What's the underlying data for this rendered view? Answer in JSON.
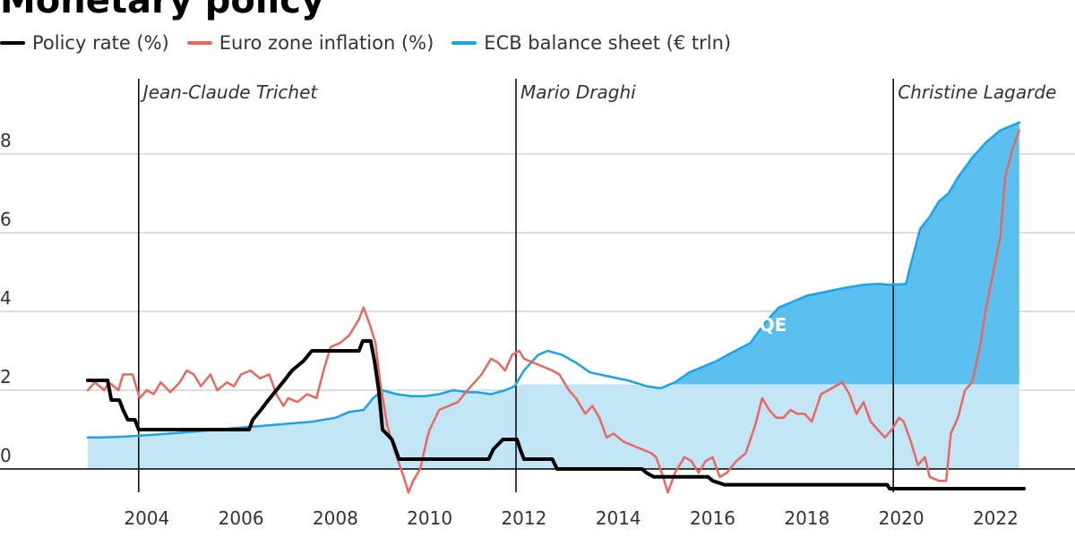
{
  "page": {
    "title": "Monetary policy"
  },
  "legend": [
    {
      "label": "Policy rate (%)",
      "color": "#000000"
    },
    {
      "label": "Euro zone inflation (%)",
      "color": "#e8685f"
    },
    {
      "label": "ECB balance sheet (€ trln)",
      "color": "#1aa3e8"
    }
  ],
  "colors": {
    "policy": "#000000",
    "inflation": "#e8685f",
    "balance_line": "#1aa3e8",
    "balance_fill_light": "#c3e6f7",
    "balance_fill_qe": "#5bc0f0",
    "grid": "#bdbdbd"
  },
  "chart_data": {
    "type": "line",
    "x_unit": "year",
    "xlim": [
      2001.0,
      2023.8
    ],
    "ylim": [
      -1.0,
      9.9
    ],
    "x_ticks": [
      2004,
      2006,
      2008,
      2010,
      2012,
      2014,
      2016,
      2018,
      2020,
      2022
    ],
    "x_tick_labels": [
      "2004",
      "2006",
      "2008",
      "2010",
      "2012",
      "2014",
      "2016",
      "2018",
      "2020",
      "2022"
    ],
    "y_ticks": [
      0,
      2,
      4,
      6,
      8
    ],
    "y_tick_labels": [
      "0",
      "2",
      "4",
      "6",
      "8"
    ],
    "grid": true,
    "legend_position": "top-left",
    "eras": [
      {
        "start": 2003.83,
        "label": "Jean-Claude Trichet"
      },
      {
        "start": 2011.83,
        "label": "Mario Draghi"
      },
      {
        "start": 2019.83,
        "label": "Christine Lagarde"
      }
    ],
    "annotations": [
      {
        "text": "ECB QE",
        "x": 2016.8,
        "y": 3.5
      }
    ],
    "qe_threshold": 2.15,
    "series": [
      {
        "name": "Policy rate (%)",
        "points": [
          [
            2002.75,
            2.25
          ],
          [
            2003.17,
            2.25
          ],
          [
            2003.25,
            1.75
          ],
          [
            2003.42,
            1.75
          ],
          [
            2003.5,
            1.5
          ],
          [
            2003.6,
            1.25
          ],
          [
            2003.75,
            1.25
          ],
          [
            2003.83,
            1.0
          ],
          [
            2005.92,
            1.0
          ],
          [
            2006.17,
            1.0
          ],
          [
            2006.25,
            1.25
          ],
          [
            2006.42,
            1.5
          ],
          [
            2006.58,
            1.75
          ],
          [
            2006.75,
            2.0
          ],
          [
            2006.92,
            2.25
          ],
          [
            2007.08,
            2.5
          ],
          [
            2007.33,
            2.75
          ],
          [
            2007.5,
            3.0
          ],
          [
            2008.5,
            3.0
          ],
          [
            2008.58,
            3.25
          ],
          [
            2008.75,
            3.25
          ],
          [
            2008.83,
            2.75
          ],
          [
            2008.92,
            2.0
          ],
          [
            2009.0,
            1.0
          ],
          [
            2009.2,
            0.75
          ],
          [
            2009.35,
            0.25
          ],
          [
            2011.25,
            0.25
          ],
          [
            2011.35,
            0.5
          ],
          [
            2011.55,
            0.75
          ],
          [
            2011.85,
            0.75
          ],
          [
            2011.92,
            0.5
          ],
          [
            2012.0,
            0.25
          ],
          [
            2012.6,
            0.25
          ],
          [
            2012.7,
            0.0
          ],
          [
            2014.5,
            0.0
          ],
          [
            2014.6,
            -0.1
          ],
          [
            2014.75,
            -0.2
          ],
          [
            2015.9,
            -0.2
          ],
          [
            2016.0,
            -0.3
          ],
          [
            2016.25,
            -0.4
          ],
          [
            2019.7,
            -0.4
          ],
          [
            2019.75,
            -0.5
          ],
          [
            2022.6,
            -0.5
          ]
        ]
      },
      {
        "name": "Euro zone inflation (%)",
        "points": [
          [
            2002.75,
            2.0
          ],
          [
            2002.9,
            2.2
          ],
          [
            2003.1,
            2.0
          ],
          [
            2003.2,
            2.2
          ],
          [
            2003.4,
            2.0
          ],
          [
            2003.5,
            2.4
          ],
          [
            2003.7,
            2.4
          ],
          [
            2003.85,
            1.8
          ],
          [
            2004.0,
            2.0
          ],
          [
            2004.15,
            1.9
          ],
          [
            2004.3,
            2.2
          ],
          [
            2004.5,
            1.95
          ],
          [
            2004.7,
            2.2
          ],
          [
            2004.85,
            2.5
          ],
          [
            2005.0,
            2.4
          ],
          [
            2005.15,
            2.1
          ],
          [
            2005.35,
            2.4
          ],
          [
            2005.5,
            2.0
          ],
          [
            2005.7,
            2.2
          ],
          [
            2005.85,
            2.1
          ],
          [
            2006.0,
            2.4
          ],
          [
            2006.2,
            2.5
          ],
          [
            2006.4,
            2.3
          ],
          [
            2006.6,
            2.4
          ],
          [
            2006.75,
            1.9
          ],
          [
            2006.9,
            1.6
          ],
          [
            2007.0,
            1.8
          ],
          [
            2007.2,
            1.7
          ],
          [
            2007.4,
            1.9
          ],
          [
            2007.6,
            1.8
          ],
          [
            2007.75,
            2.5
          ],
          [
            2007.9,
            3.1
          ],
          [
            2008.1,
            3.2
          ],
          [
            2008.3,
            3.4
          ],
          [
            2008.5,
            3.8
          ],
          [
            2008.6,
            4.1
          ],
          [
            2008.75,
            3.6
          ],
          [
            2008.85,
            3.2
          ],
          [
            2008.95,
            2.2
          ],
          [
            2009.1,
            1.1
          ],
          [
            2009.3,
            0.3
          ],
          [
            2009.45,
            -0.2
          ],
          [
            2009.55,
            -0.6
          ],
          [
            2009.65,
            -0.3
          ],
          [
            2009.8,
            0.0
          ],
          [
            2009.95,
            0.8
          ],
          [
            2010.0,
            1.0
          ],
          [
            2010.2,
            1.5
          ],
          [
            2010.4,
            1.6
          ],
          [
            2010.6,
            1.7
          ],
          [
            2010.8,
            2.0
          ],
          [
            2010.95,
            2.2
          ],
          [
            2011.1,
            2.4
          ],
          [
            2011.3,
            2.8
          ],
          [
            2011.45,
            2.7
          ],
          [
            2011.6,
            2.5
          ],
          [
            2011.75,
            2.9
          ],
          [
            2011.9,
            3.0
          ],
          [
            2012.0,
            2.8
          ],
          [
            2012.2,
            2.7
          ],
          [
            2012.4,
            2.6
          ],
          [
            2012.6,
            2.5
          ],
          [
            2012.75,
            2.4
          ],
          [
            2012.85,
            2.2
          ],
          [
            2012.95,
            2.0
          ],
          [
            2013.1,
            1.8
          ],
          [
            2013.3,
            1.4
          ],
          [
            2013.45,
            1.6
          ],
          [
            2013.6,
            1.3
          ],
          [
            2013.75,
            0.8
          ],
          [
            2013.9,
            0.9
          ],
          [
            2014.1,
            0.7
          ],
          [
            2014.3,
            0.6
          ],
          [
            2014.5,
            0.5
          ],
          [
            2014.7,
            0.4
          ],
          [
            2014.8,
            0.3
          ],
          [
            2014.95,
            -0.2
          ],
          [
            2015.05,
            -0.6
          ],
          [
            2015.2,
            -0.1
          ],
          [
            2015.4,
            0.3
          ],
          [
            2015.55,
            0.2
          ],
          [
            2015.7,
            -0.1
          ],
          [
            2015.85,
            0.2
          ],
          [
            2016.0,
            0.3
          ],
          [
            2016.15,
            -0.2
          ],
          [
            2016.3,
            -0.1
          ],
          [
            2016.5,
            0.2
          ],
          [
            2016.7,
            0.4
          ],
          [
            2016.9,
            1.1
          ],
          [
            2017.05,
            1.8
          ],
          [
            2017.2,
            1.5
          ],
          [
            2017.35,
            1.3
          ],
          [
            2017.5,
            1.3
          ],
          [
            2017.65,
            1.5
          ],
          [
            2017.8,
            1.4
          ],
          [
            2017.95,
            1.4
          ],
          [
            2018.1,
            1.2
          ],
          [
            2018.3,
            1.9
          ],
          [
            2018.45,
            2.0
          ],
          [
            2018.6,
            2.1
          ],
          [
            2018.75,
            2.2
          ],
          [
            2018.9,
            1.9
          ],
          [
            2019.05,
            1.4
          ],
          [
            2019.2,
            1.7
          ],
          [
            2019.35,
            1.2
          ],
          [
            2019.5,
            1.0
          ],
          [
            2019.65,
            0.8
          ],
          [
            2019.8,
            1.0
          ],
          [
            2019.95,
            1.3
          ],
          [
            2020.05,
            1.2
          ],
          [
            2020.2,
            0.7
          ],
          [
            2020.35,
            0.1
          ],
          [
            2020.5,
            0.3
          ],
          [
            2020.6,
            -0.2
          ],
          [
            2020.8,
            -0.3
          ],
          [
            2020.95,
            -0.3
          ],
          [
            2021.05,
            0.9
          ],
          [
            2021.2,
            1.3
          ],
          [
            2021.35,
            2.0
          ],
          [
            2021.5,
            2.2
          ],
          [
            2021.65,
            3.0
          ],
          [
            2021.8,
            4.1
          ],
          [
            2021.95,
            5.0
          ],
          [
            2022.1,
            5.9
          ],
          [
            2022.2,
            7.4
          ],
          [
            2022.35,
            8.1
          ],
          [
            2022.5,
            8.6
          ]
        ]
      },
      {
        "name": "ECB balance sheet (€ trln)",
        "points": [
          [
            2002.75,
            0.8
          ],
          [
            2003.0,
            0.8
          ],
          [
            2003.5,
            0.82
          ],
          [
            2004.0,
            0.86
          ],
          [
            2004.5,
            0.9
          ],
          [
            2005.0,
            0.95
          ],
          [
            2005.5,
            1.0
          ],
          [
            2006.0,
            1.05
          ],
          [
            2006.5,
            1.1
          ],
          [
            2007.0,
            1.15
          ],
          [
            2007.5,
            1.2
          ],
          [
            2008.0,
            1.3
          ],
          [
            2008.3,
            1.45
          ],
          [
            2008.6,
            1.5
          ],
          [
            2008.8,
            1.8
          ],
          [
            2009.0,
            2.0
          ],
          [
            2009.3,
            1.9
          ],
          [
            2009.6,
            1.85
          ],
          [
            2009.9,
            1.85
          ],
          [
            2010.2,
            1.9
          ],
          [
            2010.5,
            2.0
          ],
          [
            2010.8,
            1.95
          ],
          [
            2011.0,
            1.95
          ],
          [
            2011.3,
            1.9
          ],
          [
            2011.6,
            2.0
          ],
          [
            2011.8,
            2.1
          ],
          [
            2012.0,
            2.5
          ],
          [
            2012.3,
            2.9
          ],
          [
            2012.5,
            3.0
          ],
          [
            2012.8,
            2.9
          ],
          [
            2013.1,
            2.7
          ],
          [
            2013.4,
            2.45
          ],
          [
            2013.8,
            2.35
          ],
          [
            2014.2,
            2.25
          ],
          [
            2014.6,
            2.1
          ],
          [
            2014.9,
            2.05
          ],
          [
            2015.2,
            2.2
          ],
          [
            2015.5,
            2.45
          ],
          [
            2015.8,
            2.6
          ],
          [
            2016.1,
            2.75
          ],
          [
            2016.4,
            2.95
          ],
          [
            2016.8,
            3.2
          ],
          [
            2017.1,
            3.7
          ],
          [
            2017.4,
            4.1
          ],
          [
            2017.7,
            4.25
          ],
          [
            2018.0,
            4.4
          ],
          [
            2018.4,
            4.5
          ],
          [
            2018.8,
            4.6
          ],
          [
            2019.2,
            4.68
          ],
          [
            2019.5,
            4.7
          ],
          [
            2019.8,
            4.68
          ],
          [
            2020.1,
            4.7
          ],
          [
            2020.2,
            5.2
          ],
          [
            2020.4,
            6.1
          ],
          [
            2020.6,
            6.4
          ],
          [
            2020.8,
            6.8
          ],
          [
            2021.0,
            7.0
          ],
          [
            2021.2,
            7.4
          ],
          [
            2021.5,
            7.9
          ],
          [
            2021.8,
            8.3
          ],
          [
            2022.1,
            8.6
          ],
          [
            2022.5,
            8.8
          ]
        ]
      }
    ]
  }
}
